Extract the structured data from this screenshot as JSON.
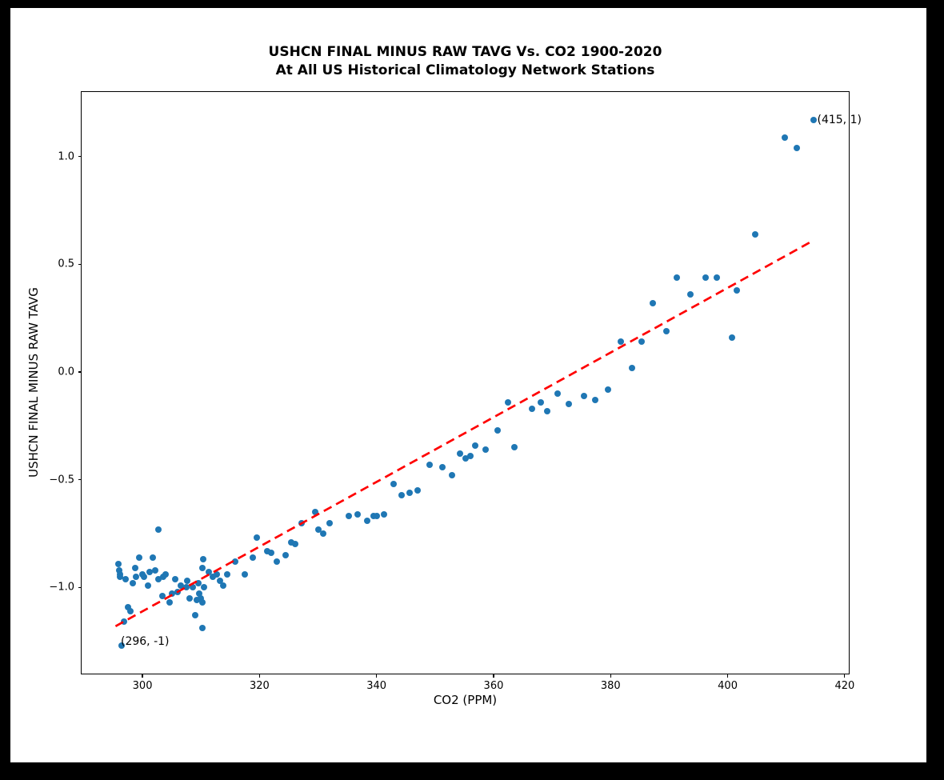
{
  "page": {
    "background_color": "#000000",
    "figure_background_color": "#ffffff"
  },
  "chart_data": {
    "type": "scatter",
    "title": "USHCN FINAL MINUS RAW TAVG Vs. CO2 1900-2020",
    "subtitle": "At All US Historical Climatology Network Stations",
    "xlabel": "CO2 (PPM)",
    "ylabel": "USHCN FINAL MINUS RAW TAVG",
    "xlim": [
      289.6,
      420.7
    ],
    "ylim": [
      -1.4,
      1.3
    ],
    "x_ticks": [
      300,
      320,
      340,
      360,
      380,
      400,
      420
    ],
    "x_tick_labels": [
      "300",
      "320",
      "340",
      "360",
      "380",
      "400",
      "420"
    ],
    "y_ticks": [
      1.0,
      0.5,
      0.0,
      -0.5,
      -1.0
    ],
    "y_tick_labels": [
      "1.0",
      "0.5",
      "0.0",
      "−0.5",
      "−1.0"
    ],
    "grid": false,
    "legend": null,
    "marker_color": "#1f77b4",
    "marker_diameter_px": 8,
    "trendline": {
      "color": "#ff0000",
      "style": "dashed",
      "x1": 295.4,
      "y1": -1.18,
      "x2": 414.6,
      "y2": 0.61
    },
    "annotations": [
      {
        "text": "(415, 1)",
        "x": 415.3,
        "y": 1.17
      },
      {
        "text": "(296, -1)",
        "x": 296.3,
        "y": -1.25
      }
    ],
    "points": [
      [
        295.9,
        -0.89
      ],
      [
        296.0,
        -0.92
      ],
      [
        296.1,
        -0.94
      ],
      [
        296.2,
        -0.95
      ],
      [
        296.4,
        -1.27
      ],
      [
        296.8,
        -1.16
      ],
      [
        297.1,
        -0.96
      ],
      [
        297.5,
        -1.09
      ],
      [
        297.9,
        -1.11
      ],
      [
        298.4,
        -0.98
      ],
      [
        298.8,
        -0.91
      ],
      [
        298.9,
        -0.95
      ],
      [
        299.5,
        -0.86
      ],
      [
        300.0,
        -0.94
      ],
      [
        300.2,
        -0.95
      ],
      [
        300.9,
        -0.99
      ],
      [
        301.2,
        -0.93
      ],
      [
        301.7,
        -0.86
      ],
      [
        302.2,
        -0.92
      ],
      [
        302.7,
        -0.73
      ],
      [
        302.7,
        -0.96
      ],
      [
        303.4,
        -1.04
      ],
      [
        303.5,
        -0.95
      ],
      [
        304.0,
        -0.94
      ],
      [
        304.7,
        -1.07
      ],
      [
        305.1,
        -1.03
      ],
      [
        305.6,
        -0.96
      ],
      [
        306.0,
        -1.02
      ],
      [
        306.5,
        -0.99
      ],
      [
        307.5,
        -1.0
      ],
      [
        307.7,
        -0.97
      ],
      [
        308.0,
        -1.05
      ],
      [
        308.6,
        -1.0
      ],
      [
        309.0,
        -1.13
      ],
      [
        309.3,
        -1.06
      ],
      [
        309.5,
        -0.98
      ],
      [
        309.7,
        -1.03
      ],
      [
        310.0,
        -1.05
      ],
      [
        310.2,
        -0.91
      ],
      [
        310.2,
        -1.07
      ],
      [
        310.2,
        -1.19
      ],
      [
        310.4,
        -0.87
      ],
      [
        310.5,
        -1.0
      ],
      [
        311.3,
        -0.93
      ],
      [
        312.0,
        -0.95
      ],
      [
        312.7,
        -0.94
      ],
      [
        313.2,
        -0.97
      ],
      [
        313.8,
        -0.99
      ],
      [
        314.5,
        -0.94
      ],
      [
        315.9,
        -0.88
      ],
      [
        317.5,
        -0.94
      ],
      [
        318.8,
        -0.86
      ],
      [
        319.5,
        -0.77
      ],
      [
        321.3,
        -0.83
      ],
      [
        322.0,
        -0.84
      ],
      [
        322.9,
        -0.88
      ],
      [
        324.5,
        -0.85
      ],
      [
        325.4,
        -0.79
      ],
      [
        326.1,
        -0.8
      ],
      [
        327.2,
        -0.7
      ],
      [
        329.5,
        -0.65
      ],
      [
        330.0,
        -0.73
      ],
      [
        330.9,
        -0.75
      ],
      [
        332.0,
        -0.7
      ],
      [
        335.2,
        -0.67
      ],
      [
        336.8,
        -0.66
      ],
      [
        338.4,
        -0.69
      ],
      [
        339.5,
        -0.67
      ],
      [
        340.0,
        -0.67
      ],
      [
        341.3,
        -0.66
      ],
      [
        342.9,
        -0.52
      ],
      [
        344.3,
        -0.57
      ],
      [
        345.6,
        -0.56
      ],
      [
        347.0,
        -0.55
      ],
      [
        349.1,
        -0.43
      ],
      [
        351.3,
        -0.44
      ],
      [
        352.9,
        -0.48
      ],
      [
        354.3,
        -0.38
      ],
      [
        355.2,
        -0.4
      ],
      [
        356.1,
        -0.39
      ],
      [
        356.8,
        -0.34
      ],
      [
        358.6,
        -0.36
      ],
      [
        360.7,
        -0.27
      ],
      [
        362.5,
        -0.14
      ],
      [
        363.6,
        -0.35
      ],
      [
        366.5,
        -0.17
      ],
      [
        368.1,
        -0.14
      ],
      [
        369.1,
        -0.18
      ],
      [
        370.9,
        -0.1
      ],
      [
        372.9,
        -0.15
      ],
      [
        375.4,
        -0.11
      ],
      [
        377.3,
        -0.13
      ],
      [
        379.6,
        -0.08
      ],
      [
        381.8,
        0.14
      ],
      [
        383.6,
        0.02
      ],
      [
        385.3,
        0.14
      ],
      [
        387.2,
        0.32
      ],
      [
        389.5,
        0.19
      ],
      [
        391.3,
        0.44
      ],
      [
        393.7,
        0.36
      ],
      [
        396.2,
        0.44
      ],
      [
        398.2,
        0.44
      ],
      [
        400.8,
        0.16
      ],
      [
        401.6,
        0.38
      ],
      [
        404.7,
        0.64
      ],
      [
        409.7,
        1.09
      ],
      [
        411.8,
        1.04
      ],
      [
        414.7,
        1.17
      ]
    ]
  }
}
